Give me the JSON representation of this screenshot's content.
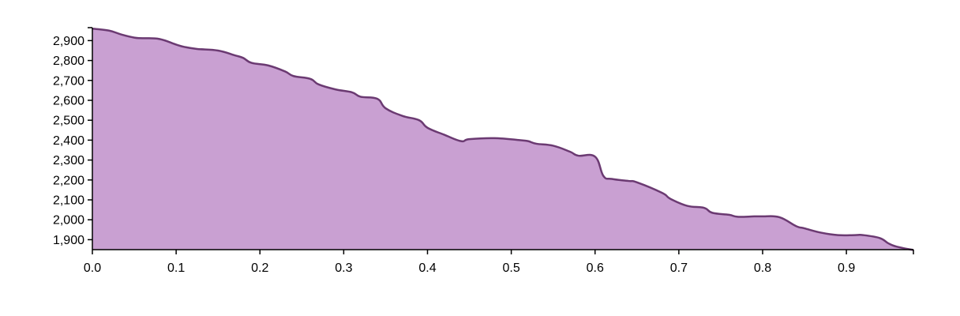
{
  "chart_data": {
    "type": "area",
    "title": "",
    "xlabel": "",
    "ylabel": "",
    "xlim": [
      0,
      0.98
    ],
    "ylim": [
      1850,
      2965
    ],
    "x_ticks": [
      "0.0",
      "0.1",
      "0.2",
      "0.3",
      "0.4",
      "0.5",
      "0.6",
      "0.7",
      "0.8",
      "0.9"
    ],
    "y_ticks": [
      "1,900",
      "2,000",
      "2,100",
      "2,200",
      "2,300",
      "2,400",
      "2,500",
      "2,600",
      "2,700",
      "2,800",
      "2,900"
    ],
    "grid": false,
    "legend": "none",
    "colors": {
      "fill": "#c9a0d2",
      "stroke": "#6b3a72"
    },
    "series": [
      {
        "x": [
          0.0,
          0.02,
          0.035,
          0.05,
          0.06,
          0.08,
          0.1,
          0.11,
          0.125,
          0.15,
          0.17,
          0.18,
          0.19,
          0.21,
          0.23,
          0.24,
          0.26,
          0.27,
          0.29,
          0.31,
          0.32,
          0.34,
          0.35,
          0.37,
          0.39,
          0.4,
          0.42,
          0.44,
          0.45,
          0.48,
          0.51,
          0.52,
          0.53,
          0.55,
          0.57,
          0.58,
          0.6,
          0.61,
          0.62,
          0.64,
          0.65,
          0.68,
          0.69,
          0.71,
          0.73,
          0.74,
          0.76,
          0.77,
          0.79,
          0.8,
          0.82,
          0.84,
          0.85,
          0.87,
          0.89,
          0.91,
          0.92,
          0.94,
          0.95,
          0.96,
          0.98
        ],
        "y": [
          2960,
          2950,
          2930,
          2915,
          2912,
          2908,
          2880,
          2868,
          2858,
          2850,
          2826,
          2813,
          2788,
          2775,
          2745,
          2722,
          2708,
          2680,
          2655,
          2640,
          2618,
          2608,
          2560,
          2522,
          2500,
          2462,
          2427,
          2395,
          2405,
          2410,
          2400,
          2395,
          2382,
          2372,
          2342,
          2322,
          2317,
          2220,
          2205,
          2195,
          2188,
          2135,
          2105,
          2070,
          2060,
          2035,
          2025,
          2015,
          2017,
          2017,
          2013,
          1968,
          1957,
          1935,
          1923,
          1923,
          1923,
          1908,
          1882,
          1865,
          1848
        ]
      }
    ]
  }
}
